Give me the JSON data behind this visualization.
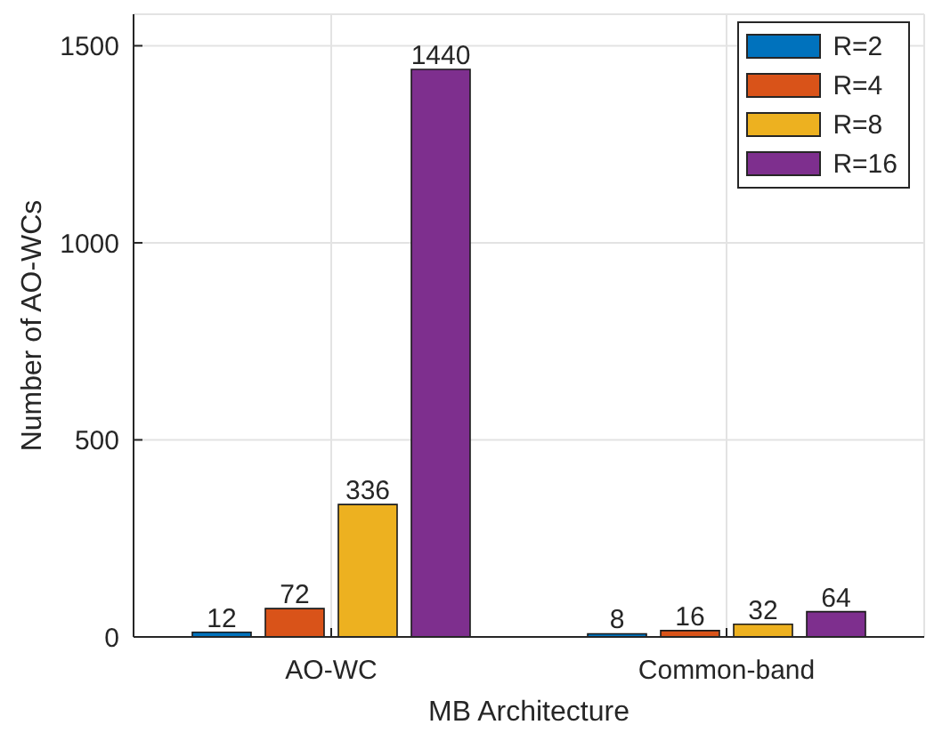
{
  "chart_data": {
    "type": "bar",
    "xlabel": "MB Architecture",
    "ylabel": "Number of AO-WCs",
    "categories": [
      "AO-WC",
      "Common-band"
    ],
    "series": [
      {
        "name": "R=2",
        "color": "#0072bd",
        "values": [
          12,
          8
        ]
      },
      {
        "name": "R=4",
        "color": "#d95319",
        "values": [
          72,
          16
        ]
      },
      {
        "name": "R=8",
        "color": "#edb120",
        "values": [
          336,
          32
        ]
      },
      {
        "name": "R=16",
        "color": "#7e2f8e",
        "values": [
          1440,
          64
        ]
      }
    ],
    "ylim": [
      0,
      1580
    ],
    "yticks": [
      0,
      500,
      1000,
      1500
    ],
    "grid": true,
    "legend": "top right",
    "data_labels": true
  }
}
